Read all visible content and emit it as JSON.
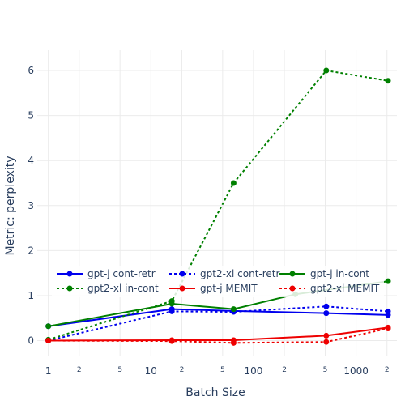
{
  "chart_data": {
    "type": "line",
    "xlabel": "Batch Size",
    "ylabel": "Metric: perplexity",
    "x_scale": "log",
    "xlim": [
      0.78,
      2500
    ],
    "ylim": [
      -0.35,
      6.45
    ],
    "y_ticks": [
      0,
      1,
      2,
      3,
      4,
      5,
      6
    ],
    "x_major_ticks": [
      {
        "value": 1,
        "label": "1"
      },
      {
        "value": 10,
        "label": "10"
      },
      {
        "value": 100,
        "label": "100"
      },
      {
        "value": 1000,
        "label": "1000"
      }
    ],
    "x_minor_ticks": [
      {
        "value": 2,
        "label": "2"
      },
      {
        "value": 5,
        "label": "5"
      },
      {
        "value": 20,
        "label": "2"
      },
      {
        "value": 50,
        "label": "5"
      },
      {
        "value": 200,
        "label": "2"
      },
      {
        "value": 500,
        "label": "5"
      },
      {
        "value": 2000,
        "label": "2"
      }
    ],
    "legend_position": "inside, lower-left",
    "grid": true,
    "series": [
      {
        "name": "gpt-j cont-retr",
        "color": "#0000ee",
        "dash": "solid",
        "x": [
          1,
          16,
          64,
          512,
          2048
        ],
        "y": [
          0.32,
          0.7,
          0.66,
          0.61,
          0.57
        ]
      },
      {
        "name": "gpt2-xl cont-retr",
        "color": "#0000ee",
        "dash": "dot",
        "x": [
          1,
          16,
          64,
          512,
          2048
        ],
        "y": [
          0.0,
          0.65,
          0.64,
          0.76,
          0.65
        ]
      },
      {
        "name": "gpt-j in-cont",
        "color": "#008000",
        "dash": "solid",
        "x": [
          1,
          16,
          64,
          256,
          2048
        ],
        "y": [
          0.32,
          0.82,
          0.7,
          1.03,
          1.32
        ]
      },
      {
        "name": "gpt2-xl in-cont",
        "color": "#008000",
        "dash": "dot",
        "x": [
          1,
          16,
          64,
          512,
          2048
        ],
        "y": [
          0.02,
          0.88,
          3.5,
          6.0,
          5.77
        ]
      },
      {
        "name": "gpt-j MEMIT",
        "color": "#ee0000",
        "dash": "solid",
        "x": [
          1,
          16,
          64,
          512,
          2048
        ],
        "y": [
          0.0,
          0.01,
          0.01,
          0.11,
          0.29
        ]
      },
      {
        "name": "gpt2-xl MEMIT",
        "color": "#ee0000",
        "dash": "dot",
        "x": [
          1,
          16,
          64,
          512,
          2048
        ],
        "y": [
          0.0,
          -0.01,
          -0.05,
          -0.03,
          0.27
        ]
      }
    ]
  }
}
